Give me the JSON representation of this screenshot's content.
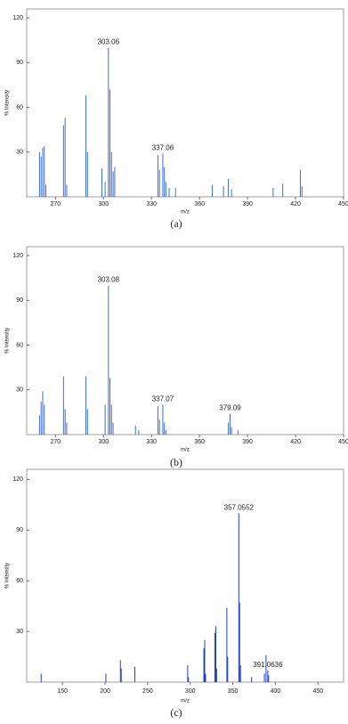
{
  "chart_data": [
    {
      "type": "stem",
      "color": "#3b6fd8",
      "caption": "(a)",
      "x_label": "m/z",
      "y_label": "% Intensity",
      "xlim": [
        252,
        450
      ],
      "xticks": [
        270,
        300,
        330,
        360,
        390,
        420,
        450
      ],
      "ylim": [
        0,
        126
      ],
      "yticks": [
        30,
        60,
        90,
        120
      ],
      "x": [
        260,
        261,
        262,
        263,
        264,
        275,
        276,
        277,
        289,
        290,
        299,
        301,
        303.06,
        304,
        305,
        306,
        307,
        334,
        335,
        337.06,
        338,
        339,
        341,
        345,
        368,
        375,
        378,
        380,
        406,
        412,
        423,
        424
      ],
      "values": [
        30,
        27,
        33,
        34,
        8,
        48,
        53,
        8,
        68,
        30,
        19,
        10,
        100,
        72,
        30,
        17,
        20,
        28,
        18,
        29,
        20,
        10,
        6,
        6,
        8,
        7,
        12,
        5,
        6,
        9,
        18,
        7
      ],
      "annotations": [
        {
          "text": "303.06",
          "x": 303.06,
          "y": 100
        },
        {
          "text": "337.06",
          "x": 337.06,
          "y": 29
        }
      ]
    },
    {
      "type": "stem",
      "color": "#3b6fd8",
      "caption": "(b)",
      "x_label": "m/z",
      "y_label": "% Intensity",
      "xlim": [
        252,
        450
      ],
      "xticks": [
        270,
        300,
        330,
        360,
        390,
        420,
        450
      ],
      "ylim": [
        0,
        126
      ],
      "yticks": [
        30,
        60,
        90,
        120
      ],
      "x": [
        260,
        261,
        262,
        263,
        275,
        276,
        277,
        289,
        290,
        301,
        303.08,
        304,
        305,
        306,
        320,
        322,
        334,
        335,
        337.07,
        338,
        339,
        378,
        379.09,
        380,
        384
      ],
      "values": [
        13,
        22,
        29,
        20,
        39,
        17,
        8,
        39,
        17,
        20,
        100,
        38,
        20,
        8,
        6,
        3,
        19,
        10,
        20,
        8,
        3,
        8,
        14,
        5,
        3
      ],
      "annotations": [
        {
          "text": "303.08",
          "x": 303.08,
          "y": 100
        },
        {
          "text": "337.07",
          "x": 337.07,
          "y": 20
        },
        {
          "text": "379.09",
          "x": 379.09,
          "y": 14
        }
      ]
    },
    {
      "type": "stem",
      "color": "#1f3fc4",
      "caption": "(c)",
      "x_label": "m/z",
      "y_label": "% Intensity",
      "xlim": [
        108,
        480
      ],
      "xticks": [
        150,
        200,
        250,
        300,
        350,
        400,
        450
      ],
      "ylim": [
        0,
        126
      ],
      "yticks": [
        30,
        60,
        90,
        120
      ],
      "x": [
        125,
        201,
        218,
        219,
        235,
        297,
        298,
        316,
        317,
        318,
        329,
        330,
        331,
        343,
        344,
        357.0552,
        358,
        359,
        372,
        387,
        389,
        391.0636,
        392
      ],
      "values": [
        5,
        5,
        13,
        8,
        9,
        10,
        3,
        20,
        25,
        5,
        29,
        33,
        8,
        44,
        15,
        100,
        47,
        10,
        3,
        5,
        16,
        7,
        4
      ],
      "annotations": [
        {
          "text": "357.0552",
          "x": 357.0552,
          "y": 100
        },
        {
          "text": "391.0636",
          "x": 391.0636,
          "y": 7
        }
      ]
    }
  ]
}
